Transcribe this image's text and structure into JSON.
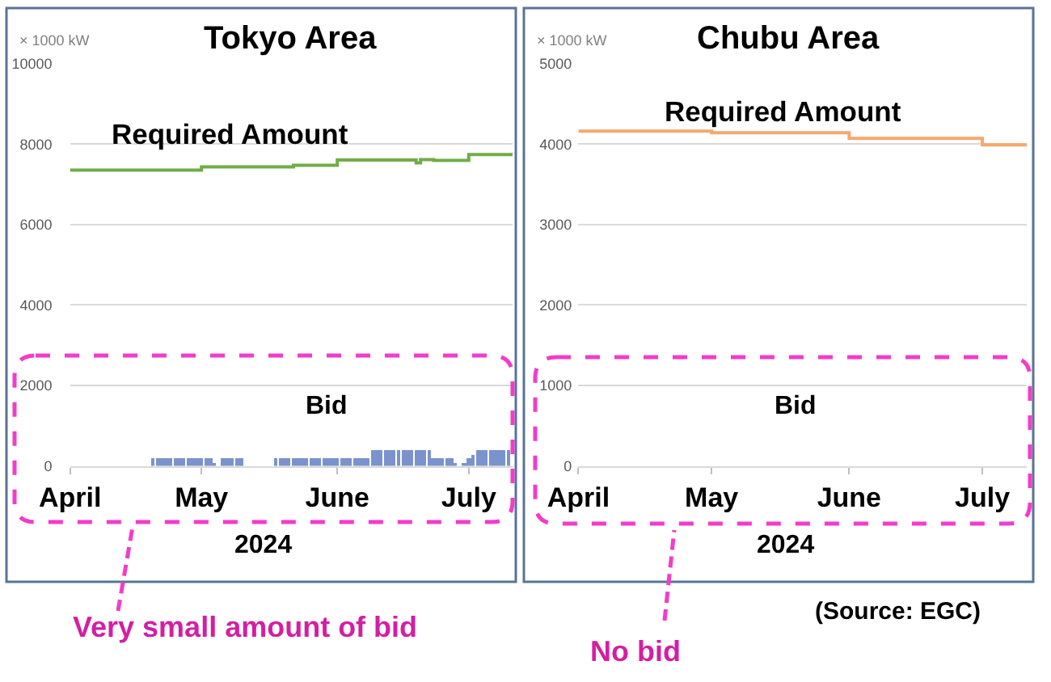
{
  "chart_data": [
    {
      "type": "step",
      "title": "Tokyo Area",
      "ylabel": "× 1000 kW",
      "xlabel": "2024",
      "xlim": [
        "2024-04-01",
        "2024-07-11"
      ],
      "xticks": [
        {
          "value": "2024-04-01",
          "label": "April"
        },
        {
          "value": "2024-05-01",
          "label": "May"
        },
        {
          "value": "2024-06-01",
          "label": "June"
        },
        {
          "value": "2024-07-01",
          "label": "July"
        }
      ],
      "ylim": [
        0,
        10000
      ],
      "yticks": [
        0,
        2000,
        4000,
        6000,
        8000,
        10000
      ],
      "grid": "y",
      "series": [
        {
          "name": "Required Amount",
          "color": "#70ad47",
          "x": [
            "2024-04-01",
            "2024-05-01",
            "2024-05-22",
            "2024-06-01",
            "2024-06-19",
            "2024-06-20",
            "2024-06-23",
            "2024-07-01",
            "2024-07-11"
          ],
          "values": [
            7350,
            7430,
            7470,
            7600,
            7530,
            7610,
            7590,
            7740,
            7740
          ]
        },
        {
          "name": "Bid",
          "type": "bar",
          "color": "#7b93cc",
          "x": [
            "2024-04-20",
            "2024-04-21",
            "2024-04-22",
            "2024-04-23",
            "2024-04-24",
            "2024-04-25",
            "2024-04-26",
            "2024-04-27",
            "2024-04-28",
            "2024-04-29",
            "2024-04-30",
            "2024-05-01",
            "2024-05-02",
            "2024-05-03",
            "2024-05-04",
            "2024-05-06",
            "2024-05-07",
            "2024-05-08",
            "2024-05-09",
            "2024-05-10",
            "2024-05-18",
            "2024-05-19",
            "2024-05-20",
            "2024-05-21",
            "2024-05-22",
            "2024-05-23",
            "2024-05-24",
            "2024-05-25",
            "2024-05-26",
            "2024-05-27",
            "2024-05-28",
            "2024-05-29",
            "2024-05-30",
            "2024-05-31",
            "2024-06-01",
            "2024-06-02",
            "2024-06-03",
            "2024-06-04",
            "2024-06-05",
            "2024-06-06",
            "2024-06-07",
            "2024-06-08",
            "2024-06-09",
            "2024-06-10",
            "2024-06-11",
            "2024-06-12",
            "2024-06-13",
            "2024-06-14",
            "2024-06-15",
            "2024-06-16",
            "2024-06-17",
            "2024-06-18",
            "2024-06-19",
            "2024-06-20",
            "2024-06-21",
            "2024-06-22",
            "2024-06-23",
            "2024-06-24",
            "2024-06-25",
            "2024-06-26",
            "2024-06-27",
            "2024-06-28",
            "2024-06-30",
            "2024-07-01",
            "2024-07-02",
            "2024-07-03",
            "2024-07-04",
            "2024-07-05",
            "2024-07-06",
            "2024-07-07",
            "2024-07-08",
            "2024-07-09",
            "2024-07-10"
          ],
          "values": [
            200,
            200,
            200,
            200,
            200,
            200,
            200,
            200,
            200,
            200,
            200,
            200,
            200,
            200,
            80,
            200,
            200,
            200,
            200,
            200,
            200,
            200,
            200,
            200,
            200,
            200,
            200,
            200,
            200,
            200,
            200,
            200,
            200,
            200,
            200,
            200,
            200,
            200,
            200,
            200,
            200,
            200,
            400,
            400,
            400,
            400,
            400,
            400,
            400,
            400,
            400,
            400,
            400,
            400,
            400,
            400,
            200,
            200,
            200,
            200,
            200,
            80,
            100,
            200,
            300,
            400,
            400,
            400,
            400,
            400,
            400,
            400,
            400
          ]
        }
      ],
      "annotations": [
        "Very small amount of bid"
      ]
    },
    {
      "type": "step",
      "title": "Chubu Area",
      "ylabel": "× 1000 kW",
      "xlabel": "2024",
      "xlim": [
        "2024-04-01",
        "2024-07-11"
      ],
      "xticks": [
        {
          "value": "2024-04-01",
          "label": "April"
        },
        {
          "value": "2024-05-01",
          "label": "May"
        },
        {
          "value": "2024-06-01",
          "label": "June"
        },
        {
          "value": "2024-07-01",
          "label": "July"
        }
      ],
      "ylim": [
        0,
        5000
      ],
      "yticks": [
        0,
        1000,
        2000,
        3000,
        4000,
        5000
      ],
      "grid": "y",
      "series": [
        {
          "name": "Required Amount",
          "color": "#f5a86e",
          "x": [
            "2024-04-01",
            "2024-05-01",
            "2024-06-01",
            "2024-07-01",
            "2024-07-11"
          ],
          "values": [
            4160,
            4140,
            4070,
            3990,
            3990
          ]
        }
      ],
      "annotations": [
        "Bid",
        "No bid",
        "(Source: EGC)"
      ]
    }
  ]
}
